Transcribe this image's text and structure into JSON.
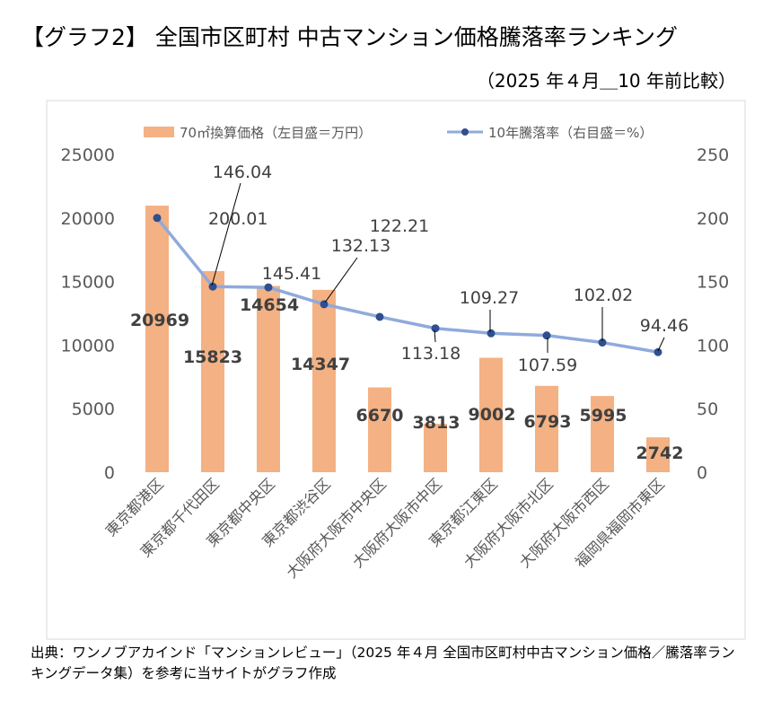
{
  "title": "【グラフ2】 全国市区町村 中古マンション価格騰落率ランキング",
  "subtitle": "（2025 年４月＿10 年前比較）",
  "source": "出典：ワンノブアカインド「マンションレビュー」（2025 年４月 全国市区町村中古マンション価格／騰落率ランキングデータ集）を参考に当サイトがグラフ作成",
  "chart_data": {
    "type": "bar+line",
    "categories": [
      "東京都港区",
      "東京都千代田区",
      "東京都中央区",
      "東京都渋谷区",
      "大阪府大阪市中央区",
      "大阪府大阪市中区",
      "東京都江東区",
      "大阪府大阪市北区",
      "大阪府大阪市西区",
      "福岡県福岡市東区"
    ],
    "series": [
      {
        "name": "70㎡換算価格（左目盛＝万円）",
        "type": "bar",
        "axis": "left",
        "color": "#f4b183",
        "values": [
          20969,
          15823,
          14654,
          14347,
          6670,
          3813,
          9002,
          6793,
          5995,
          2742
        ],
        "labels": [
          "20969",
          "15823",
          "14654",
          "14347",
          "6670",
          "3813",
          "9002",
          "6793",
          "5995",
          "2742"
        ]
      },
      {
        "name": "10年騰落率（右目盛＝%）",
        "type": "line",
        "axis": "right",
        "color": "#8faadc",
        "marker_color": "#2f4f8f",
        "values": [
          200.01,
          146.04,
          145.41,
          132.13,
          122.21,
          113.18,
          109.27,
          107.59,
          102.02,
          94.46
        ],
        "labels": [
          "200.01",
          "146.04",
          "145.41",
          "132.13",
          "122.21",
          "113.18",
          "109.27",
          "107.59",
          "102.02",
          "94.46"
        ]
      }
    ],
    "left_axis": {
      "min": 0,
      "max": 25000,
      "ticks": [
        "0",
        "5000",
        "10000",
        "15000",
        "20000",
        "25000"
      ]
    },
    "right_axis": {
      "min": 0,
      "max": 250,
      "ticks": [
        "0",
        "50",
        "100",
        "150",
        "200",
        "250"
      ]
    },
    "grid": false,
    "legend": "top"
  }
}
